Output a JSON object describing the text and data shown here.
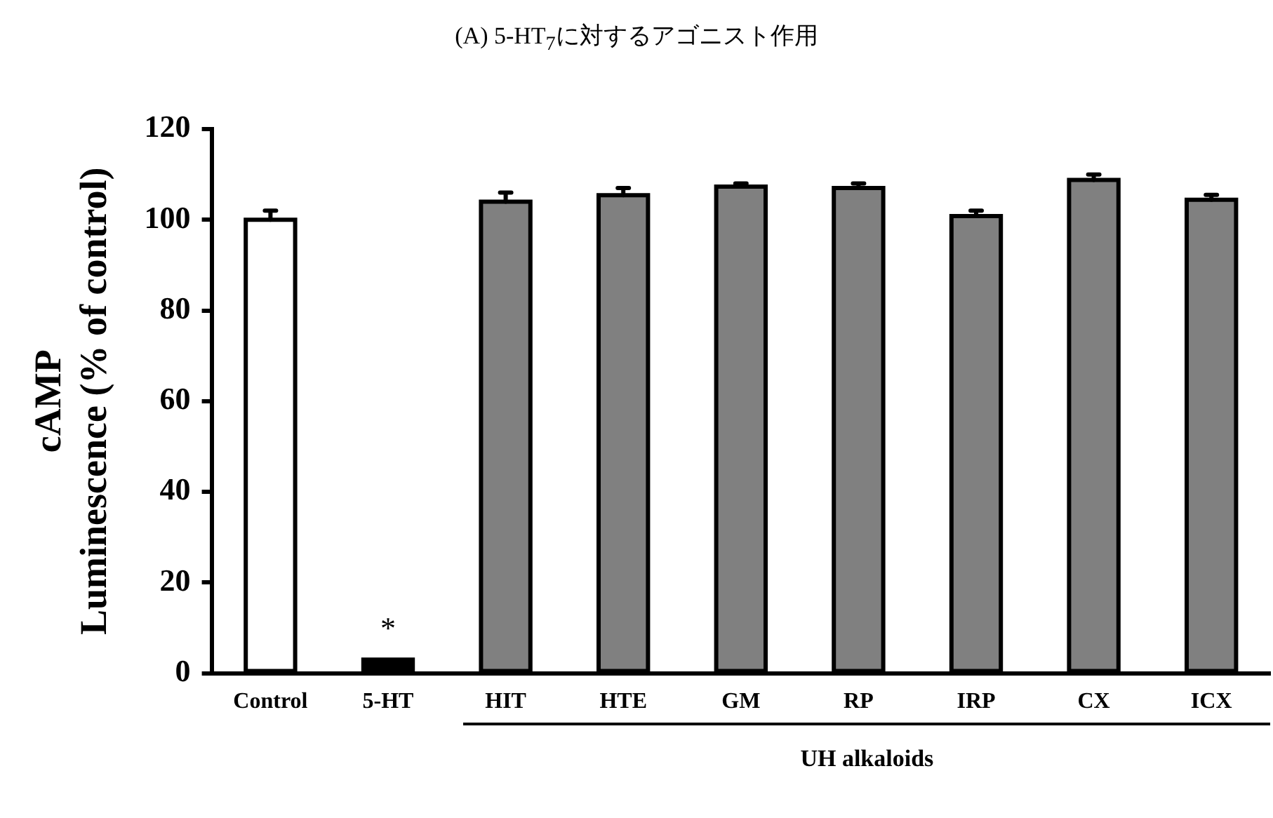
{
  "chart_data": {
    "type": "bar",
    "title": "(A) 5-HT$_{7}$に対するアゴニスト作用",
    "ylabel": "cAMP\nLuminescence (% of control)",
    "categories": [
      "Control",
      "5-HT",
      "HIT",
      "HTE",
      "GM",
      "RP",
      "IRP",
      "CX",
      "ICX"
    ],
    "values": [
      100,
      3,
      104,
      105.4,
      107.3,
      107,
      100.8,
      108.8,
      104.4
    ],
    "colors": [
      "#ffffff",
      "#000000",
      "#808080",
      "#808080",
      "#808080",
      "#808080",
      "#808080",
      "#808080",
      "#808080"
    ],
    "errors": [
      [
        100,
        102
      ],
      null,
      [
        104,
        106
      ],
      [
        105.4,
        107
      ],
      [
        107.3,
        108
      ],
      [
        107,
        108
      ],
      [
        100.8,
        102
      ],
      [
        108.8,
        110
      ],
      [
        104.4,
        105.5
      ]
    ],
    "ylim": [
      0,
      120
    ],
    "yticks": [
      0,
      20,
      40,
      60,
      80,
      100,
      120
    ],
    "annotations": [
      "*",
      "UH alkaloids"
    ]
  }
}
